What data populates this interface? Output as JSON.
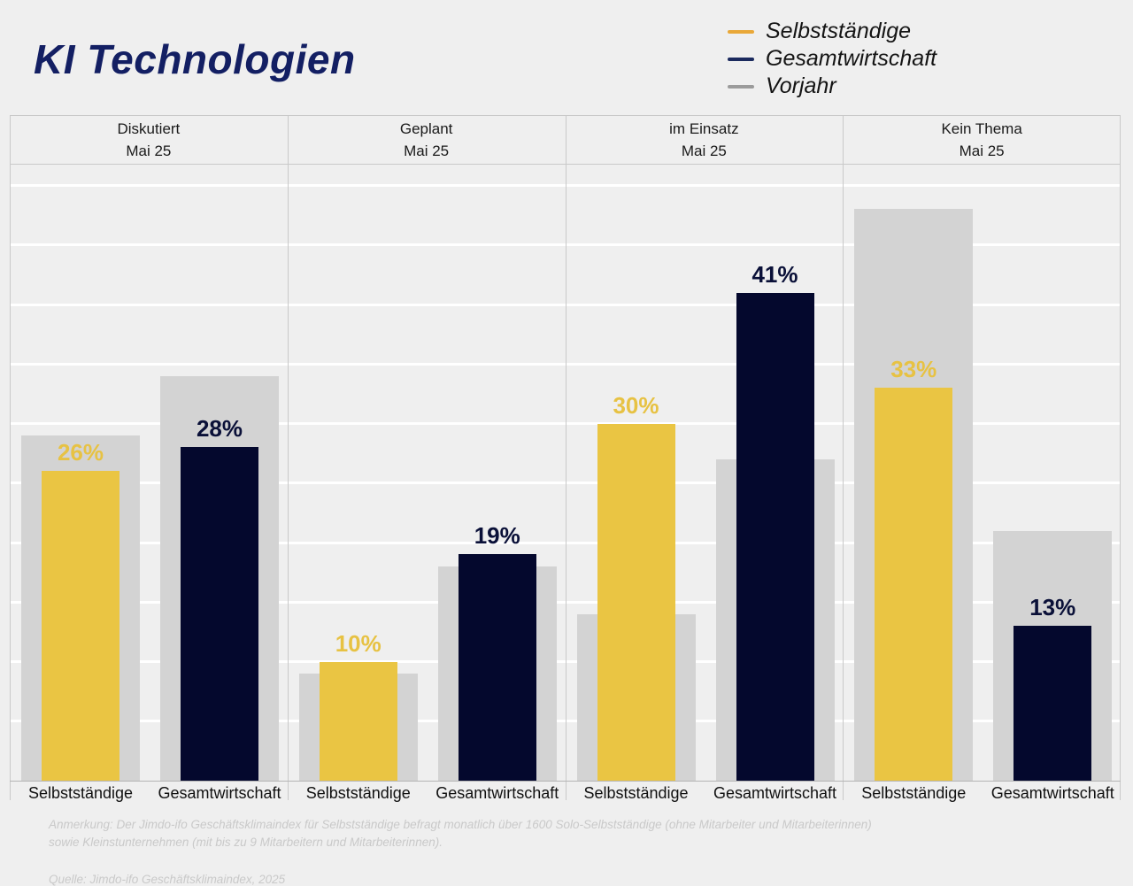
{
  "title": "KI Technologien",
  "legend": [
    {
      "id": "selbststaendige",
      "label": "Selbstständige",
      "color": "#E9A838"
    },
    {
      "id": "gesamtwirtschaft",
      "label": "Gesamtwirtschaft",
      "color": "#1B2A5E"
    },
    {
      "id": "vorjahr",
      "label": "Vorjahr",
      "color": "#9B9B9B"
    }
  ],
  "chart_data": {
    "type": "bar",
    "title": "KI Technologien",
    "unit": "%",
    "period_label": "Mai 25",
    "ylim": [
      0,
      52
    ],
    "gridline_step": 5,
    "grid": "on",
    "legend_position": "top-right",
    "series_colors": {
      "selbststaendige": "#EAC543",
      "gesamtwirtschaft": "#04082D",
      "vorjahr": "#D3D3D3"
    },
    "label_colors": {
      "selbststaendige": "#E7C243",
      "gesamtwirtschaft": "#0A1038"
    },
    "panels": [
      {
        "category": "Diskutiert",
        "period": "Mai 25",
        "groups": [
          {
            "label": "Selbstständige",
            "series": "selbststaendige",
            "value": 26,
            "value_label": "26%",
            "vorjahr": 29
          },
          {
            "label": "Gesamtwirtschaft",
            "series": "gesamtwirtschaft",
            "value": 28,
            "value_label": "28%",
            "vorjahr": 34
          }
        ]
      },
      {
        "category": "Geplant",
        "period": "Mai 25",
        "groups": [
          {
            "label": "Selbstständige",
            "series": "selbststaendige",
            "value": 10,
            "value_label": "10%",
            "vorjahr": 9
          },
          {
            "label": "Gesamtwirtschaft",
            "series": "gesamtwirtschaft",
            "value": 19,
            "value_label": "19%",
            "vorjahr": 18
          }
        ]
      },
      {
        "category": "im Einsatz",
        "period": "Mai 25",
        "groups": [
          {
            "label": "Selbstständige",
            "series": "selbststaendige",
            "value": 30,
            "value_label": "30%",
            "vorjahr": 14
          },
          {
            "label": "Gesamtwirtschaft",
            "series": "gesamtwirtschaft",
            "value": 41,
            "value_label": "41%",
            "vorjahr": 27
          }
        ]
      },
      {
        "category": "Kein Thema",
        "period": "Mai 25",
        "groups": [
          {
            "label": "Selbstständige",
            "series": "selbststaendige",
            "value": 33,
            "value_label": "33%",
            "vorjahr": 48
          },
          {
            "label": "Gesamtwirtschaft",
            "series": "gesamtwirtschaft",
            "value": 13,
            "value_label": "13%",
            "vorjahr": 21
          }
        ]
      }
    ]
  },
  "footer": {
    "note_line1": "Anmerkung: Der Jimdo-ifo Geschäftsklimaindex für Selbstständige befragt monatlich über 1600 Solo-Selbstständige (ohne Mitarbeiter und Mitarbeiterinnen)",
    "note_line2": "sowie Kleinstunternehmen (mit bis zu 9 Mitarbeitern und Mitarbeiterinnen).",
    "source": "Quelle: Jimdo-ifo Geschäftsklimaindex, 2025"
  }
}
